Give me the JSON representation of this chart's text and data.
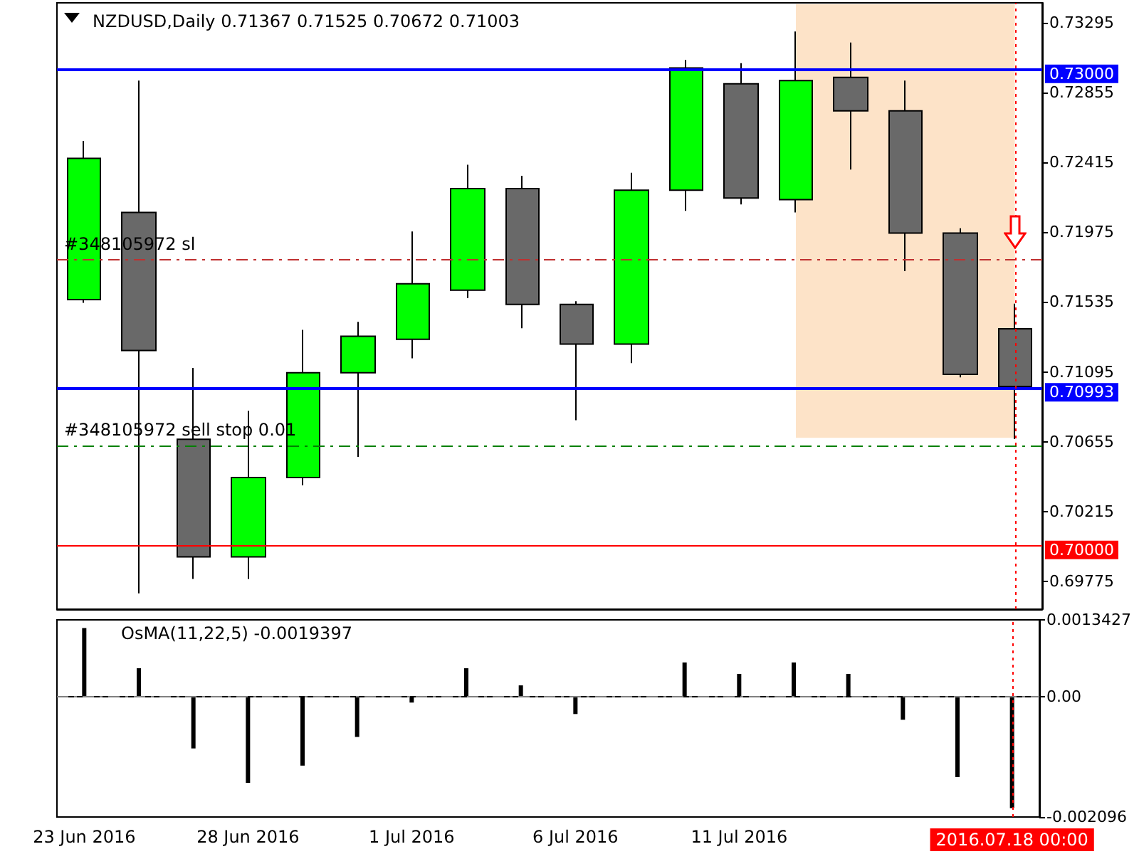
{
  "chart_data": [
    {
      "type": "candlestick",
      "title": "NZDUSD,Daily 0.71367 0.71525 0.70672 0.71003",
      "categories": [
        "23 Jun 2016",
        null,
        null,
        "28 Jun 2016",
        null,
        null,
        "1 Jul 2016",
        null,
        null,
        "6 Jul 2016",
        null,
        null,
        "11 Jul 2016",
        null,
        null,
        null,
        null,
        "2016.07.18 00:00"
      ],
      "ohlc": [
        [
          0.7155,
          0.7255,
          0.7153,
          0.7244
        ],
        [
          0.721,
          0.7293,
          0.697,
          0.7123
        ],
        [
          0.7067,
          0.7112,
          0.6979,
          0.6993
        ],
        [
          0.6993,
          0.7085,
          0.6979,
          0.7043
        ],
        [
          0.7043,
          0.7136,
          0.7038,
          0.7109
        ],
        [
          0.7109,
          0.7141,
          0.7056,
          0.7132
        ],
        [
          0.713,
          0.7198,
          0.7118,
          0.7165
        ],
        [
          0.7161,
          0.724,
          0.7156,
          0.7225
        ],
        [
          0.7225,
          0.7233,
          0.7137,
          0.7152
        ],
        [
          0.7152,
          0.7154,
          0.7079,
          0.7127
        ],
        [
          0.7127,
          0.7235,
          0.7115,
          0.7224
        ],
        [
          0.7224,
          0.7306,
          0.7211,
          0.7301
        ],
        [
          0.7291,
          0.7304,
          0.7215,
          0.7219
        ],
        [
          0.7218,
          0.7324,
          0.721,
          0.7293
        ],
        [
          0.7295,
          0.7317,
          0.7237,
          0.7274
        ],
        [
          0.7274,
          0.7293,
          0.7173,
          0.7197
        ],
        [
          0.7197,
          0.72,
          0.7106,
          0.7108
        ],
        [
          0.71367,
          0.71525,
          0.70672,
          0.71003
        ]
      ],
      "colors": [
        "#00ff00",
        "#696969",
        "#696969",
        "#00ff00",
        "#00ff00",
        "#00ff00",
        "#00ff00",
        "#00ff00",
        "#696969",
        "#696969",
        "#00ff00",
        "#00ff00",
        "#696969",
        "#00ff00",
        "#696969",
        "#696969",
        "#696969",
        "#696969"
      ],
      "ylim": [
        0.696,
        0.7342
      ],
      "yticks": [
        0.69775,
        0.70215,
        0.70655,
        0.71095,
        0.71535,
        0.71975,
        0.72415,
        0.72855,
        0.73295
      ],
      "tick_labels": "y",
      "ref_lines": [
        {
          "axis": "y",
          "value": 0.73,
          "label": "0.73000",
          "color": "#0000ff",
          "line_style": "solid"
        },
        {
          "axis": "y",
          "value": 0.70993,
          "label": "0.70993",
          "color": "#0000ff",
          "line_style": "solid"
        },
        {
          "axis": "y",
          "value": 0.7,
          "label": "0.70000",
          "color": "#ff0000",
          "line_style": "solid"
        },
        {
          "axis": "y",
          "value": 0.718,
          "label": "#348105972 sl",
          "color": "#c03030",
          "line_style": "dashed"
        },
        {
          "axis": "y",
          "value": 0.7063,
          "label": "#348105972 sell stop 0.01",
          "color": "#008000",
          "line_style": "dashed"
        },
        {
          "axis": "x",
          "value": "2016.07.18 00:00",
          "color": "#ff0000",
          "line_style": "dotted"
        }
      ]
    },
    {
      "type": "bar",
      "title": "OsMA(11,22,5) -0.0019397",
      "categories": [
        "23 Jun 2016",
        null,
        null,
        "28 Jun 2016",
        null,
        null,
        "1 Jul 2016",
        null,
        null,
        "6 Jul 2016",
        null,
        null,
        "11 Jul 2016",
        null,
        null,
        null,
        null,
        "2016.07.18 00:00"
      ],
      "values": [
        0.0012,
        0.0005,
        -0.0009,
        -0.0015,
        -0.0012,
        -0.0007,
        -0.0001,
        0.0005,
        0.0002,
        -0.0003,
        0,
        0.0006,
        0.0004,
        0.0006,
        0.0004,
        -0.0004,
        -0.0014,
        -0.0019397
      ],
      "color": "#000000",
      "ylim": [
        -0.002096,
        0.0013427
      ],
      "yticks": [
        -0.002096,
        {
          "value": 0,
          "label": "0.00"
        },
        0.0013427
      ],
      "ref_lines": [
        {
          "axis": "y",
          "value": 0,
          "color": "#808080",
          "line_style": "dashed"
        },
        {
          "axis": "x",
          "value": "2016.07.18 00:00",
          "color": "#ff0000",
          "line_style": "dotted"
        }
      ]
    }
  ]
}
